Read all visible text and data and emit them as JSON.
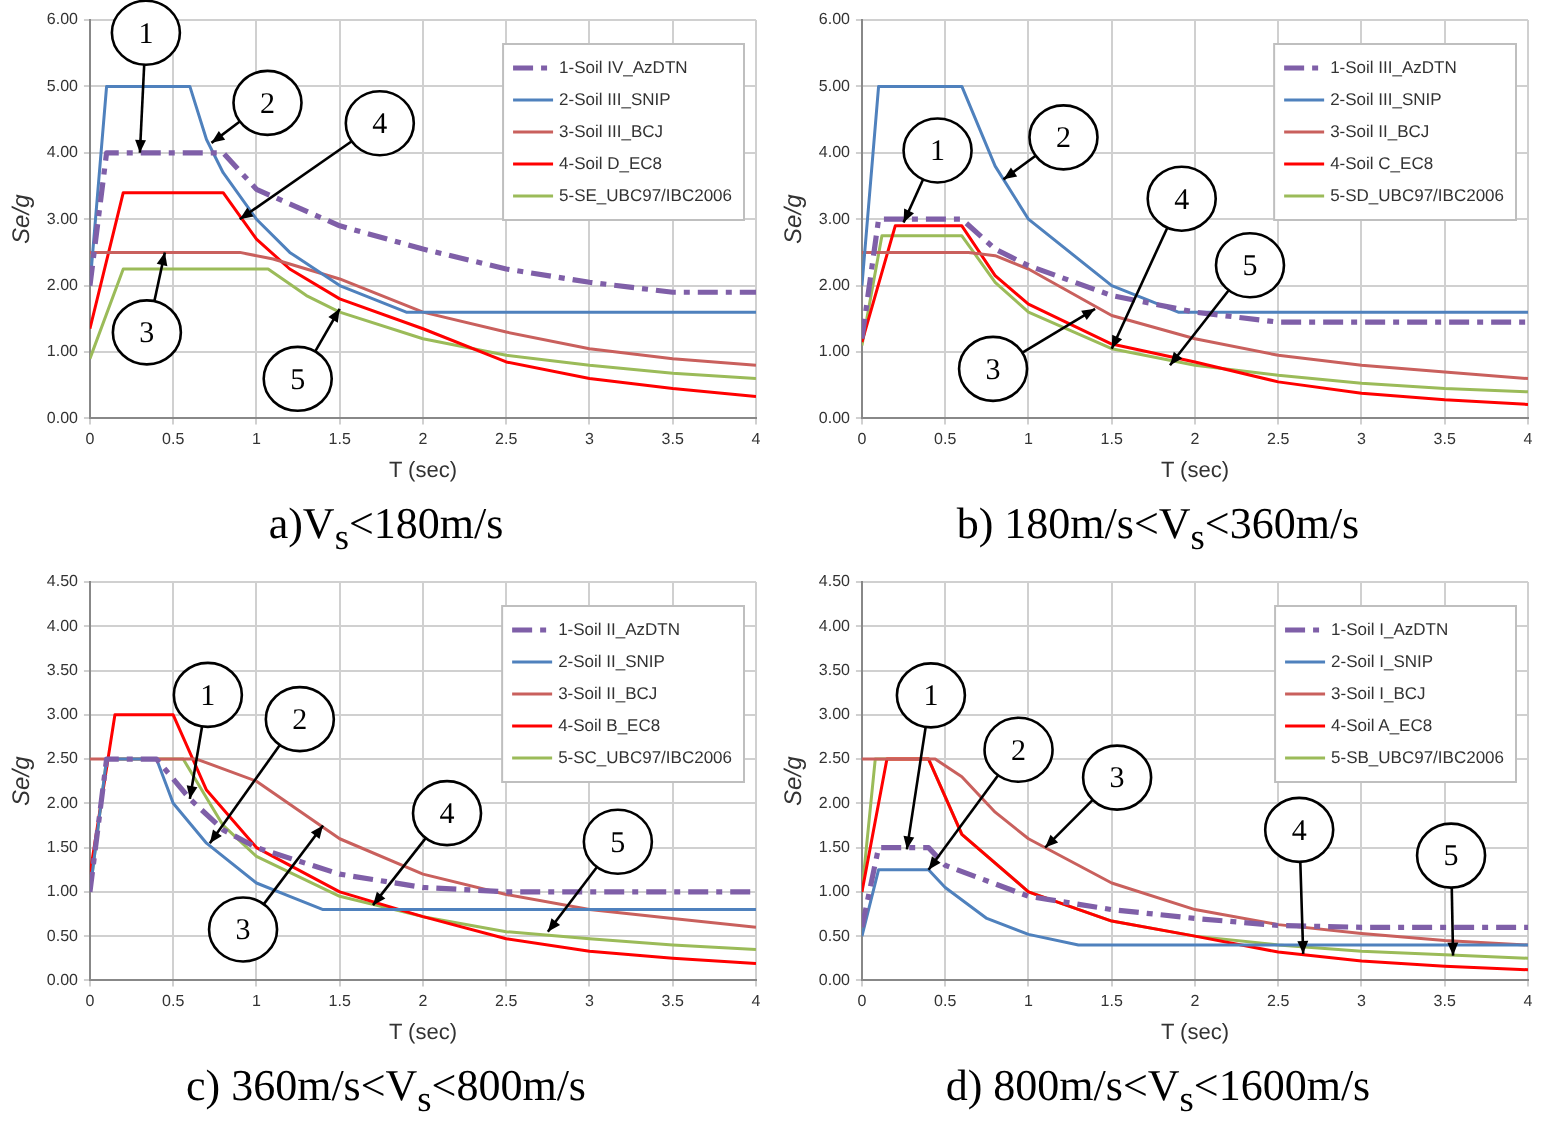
{
  "chart_data": [
    {
      "type": "line",
      "title": "a)V$_{s}$<180m/s",
      "xlabel": "T (sec)",
      "ylabel": "Se/g",
      "xlim": [
        0,
        4
      ],
      "ylim": [
        0,
        6
      ],
      "xticks": [
        0,
        0.5,
        1,
        1.5,
        2,
        2.5,
        3,
        3.5,
        4
      ],
      "yticks": [
        {
          "value": 0,
          "label": "0.00"
        },
        {
          "value": 1,
          "label": "1.00"
        },
        {
          "value": 2,
          "label": "2.00"
        },
        {
          "value": 3,
          "label": "3.00"
        },
        {
          "value": 4,
          "label": "4.00"
        },
        {
          "value": 5,
          "label": "5.00"
        },
        {
          "value": 6,
          "label": "6.00"
        }
      ],
      "grid": true,
      "legend": "top right",
      "marker": "none",
      "series": [
        {
          "name": "1-Soil IV_AzDTN",
          "color": "#7f5fa8",
          "line_style": "dashed",
          "x": [
            0,
            0.1,
            0.8,
            1,
            1.5,
            2,
            2.5,
            3,
            3.5,
            4
          ],
          "values": [
            2.0,
            4.0,
            4.0,
            3.45,
            2.9,
            2.55,
            2.25,
            2.05,
            1.9,
            1.9
          ]
        },
        {
          "name": "2-Soil III_SNIP",
          "color": "#4f81bd",
          "x": [
            0,
            0.1,
            0.6,
            0.7,
            0.8,
            1,
            1.2,
            1.5,
            1.9,
            4
          ],
          "values": [
            2.0,
            5.0,
            5.0,
            4.2,
            3.7,
            3.0,
            2.5,
            2.0,
            1.6,
            1.6
          ]
        },
        {
          "name": "3-Soil III_BCJ",
          "color": "#c9605d",
          "x": [
            0,
            0.9,
            1.1,
            1.5,
            2,
            2.5,
            3,
            3.5,
            4
          ],
          "values": [
            2.5,
            2.5,
            2.4,
            2.1,
            1.6,
            1.3,
            1.05,
            0.9,
            0.8
          ]
        },
        {
          "name": "4-Soil D_EC8",
          "color": "#ff0000",
          "x": [
            0,
            0.2,
            0.8,
            1,
            1.2,
            1.5,
            2,
            2.5,
            3,
            3.5,
            4
          ],
          "values": [
            1.35,
            3.4,
            3.4,
            2.7,
            2.25,
            1.8,
            1.35,
            0.85,
            0.6,
            0.45,
            0.33
          ]
        },
        {
          "name": "5-SE_UBC97/IBC2006",
          "color": "#9bbb59",
          "x": [
            0,
            0.2,
            1.07,
            1.3,
            1.5,
            2,
            2.5,
            3,
            3.5,
            4
          ],
          "values": [
            0.9,
            2.25,
            2.25,
            1.85,
            1.6,
            1.2,
            0.95,
            0.8,
            0.68,
            0.6
          ]
        }
      ],
      "annotations": [
        {
          "text": "1",
          "x": 0.3,
          "y": 4.0
        },
        {
          "text": "2",
          "x": 0.73,
          "y": 4.15
        },
        {
          "text": "3",
          "x": 0.45,
          "y": 2.5
        },
        {
          "text": "4",
          "x": 0.9,
          "y": 3.0
        },
        {
          "text": "5",
          "x": 1.5,
          "y": 1.65
        }
      ]
    },
    {
      "type": "line",
      "title": "b) 180m/s<V$_{s}$<360m/s",
      "xlabel": "T (sec)",
      "ylabel": "Se/g",
      "xlim": [
        0,
        4
      ],
      "ylim": [
        0,
        6
      ],
      "xticks": [
        0,
        0.5,
        1,
        1.5,
        2,
        2.5,
        3,
        3.5,
        4
      ],
      "yticks": [
        {
          "value": 0,
          "label": "0.00"
        },
        {
          "value": 1,
          "label": "1.00"
        },
        {
          "value": 2,
          "label": "2.00"
        },
        {
          "value": 3,
          "label": "3.00"
        },
        {
          "value": 4,
          "label": "4.00"
        },
        {
          "value": 5,
          "label": "5.00"
        },
        {
          "value": 6,
          "label": "6.00"
        }
      ],
      "grid": true,
      "legend": "top right",
      "marker": "none",
      "series": [
        {
          "name": "1-Soil III_AzDTN",
          "color": "#7f5fa8",
          "line_style": "dashed",
          "x": [
            0,
            0.1,
            0.6,
            0.8,
            1,
            1.5,
            2,
            2.5,
            3,
            4
          ],
          "values": [
            1.2,
            3.0,
            3.0,
            2.55,
            2.3,
            1.85,
            1.6,
            1.45,
            1.45,
            1.45
          ]
        },
        {
          "name": "2-Soil III_SNIP",
          "color": "#4f81bd",
          "x": [
            0,
            0.1,
            0.6,
            0.8,
            1,
            1.5,
            1.9,
            4
          ],
          "values": [
            2.0,
            5.0,
            5.0,
            3.8,
            3.0,
            2.0,
            1.6,
            1.6
          ]
        },
        {
          "name": "3-Soil II_BCJ",
          "color": "#c9605d",
          "x": [
            0,
            0.64,
            0.8,
            1,
            1.5,
            2,
            2.5,
            3,
            3.5,
            4
          ],
          "values": [
            2.5,
            2.5,
            2.45,
            2.25,
            1.55,
            1.2,
            0.95,
            0.8,
            0.7,
            0.6
          ]
        },
        {
          "name": "4-Soil C_EC8",
          "color": "#ff0000",
          "x": [
            0,
            0.2,
            0.6,
            0.8,
            1,
            1.5,
            2,
            2.5,
            3,
            3.5,
            4
          ],
          "values": [
            1.15,
            2.9,
            2.9,
            2.15,
            1.72,
            1.12,
            0.85,
            0.55,
            0.38,
            0.28,
            0.21
          ]
        },
        {
          "name": "5-SD_UBC97/IBC2006",
          "color": "#9bbb59",
          "x": [
            0,
            0.12,
            0.6,
            0.8,
            1,
            1.5,
            2,
            2.5,
            3,
            3.5,
            4
          ],
          "values": [
            1.1,
            2.75,
            2.75,
            2.05,
            1.6,
            1.05,
            0.8,
            0.65,
            0.53,
            0.45,
            0.4
          ]
        }
      ],
      "annotations": [
        {
          "text": "1",
          "x": 0.25,
          "y": 2.95
        },
        {
          "text": "2",
          "x": 0.85,
          "y": 3.6
        },
        {
          "text": "3",
          "x": 1.4,
          "y": 1.65
        },
        {
          "text": "4",
          "x": 1.5,
          "y": 1.05
        },
        {
          "text": "5",
          "x": 1.85,
          "y": 0.8
        }
      ]
    },
    {
      "type": "line",
      "title": "c) 360m/s<V$_{s}$<800m/s",
      "xlabel": "T (sec)",
      "ylabel": "Se/g",
      "xlim": [
        0,
        4
      ],
      "ylim": [
        0,
        4.5
      ],
      "xticks": [
        0,
        0.5,
        1,
        1.5,
        2,
        2.5,
        3,
        3.5,
        4
      ],
      "yticks": [
        {
          "value": 0,
          "label": "0.00"
        },
        {
          "value": 0.5,
          "label": "0.50"
        },
        {
          "value": 1,
          "label": "1.00"
        },
        {
          "value": 1.5,
          "label": "1.50"
        },
        {
          "value": 2,
          "label": "2.00"
        },
        {
          "value": 2.5,
          "label": "2.50"
        },
        {
          "value": 3,
          "label": "3.00"
        },
        {
          "value": 3.5,
          "label": "3.50"
        },
        {
          "value": 4,
          "label": "4.00"
        },
        {
          "value": 4.5,
          "label": "4.50"
        }
      ],
      "grid": true,
      "legend": "top right",
      "marker": "none",
      "series": [
        {
          "name": "1-Soil II_AzDTN",
          "color": "#7f5fa8",
          "line_style": "dashed",
          "x": [
            0,
            0.1,
            0.4,
            0.6,
            0.8,
            1,
            1.5,
            2,
            2.5,
            4
          ],
          "values": [
            1.0,
            2.5,
            2.5,
            2.05,
            1.7,
            1.5,
            1.2,
            1.05,
            1.0,
            1.0
          ]
        },
        {
          "name": "2-Soil II_SNIP",
          "color": "#4f81bd",
          "x": [
            0,
            0.1,
            0.4,
            0.5,
            0.7,
            1,
            1.2,
            1.4,
            4
          ],
          "values": [
            1.0,
            2.5,
            2.5,
            2.0,
            1.55,
            1.1,
            0.95,
            0.8,
            0.8
          ]
        },
        {
          "name": "3-Soil II_BCJ",
          "color": "#c9605d",
          "x": [
            0,
            0.64,
            1,
            1.5,
            2,
            2.5,
            3,
            3.5,
            4
          ],
          "values": [
            2.5,
            2.5,
            2.25,
            1.6,
            1.2,
            0.97,
            0.8,
            0.7,
            0.6
          ]
        },
        {
          "name": "4-Soil B_EC8",
          "color": "#ff0000",
          "x": [
            0,
            0.15,
            0.5,
            0.7,
            1,
            1.5,
            2,
            2.5,
            3,
            3.5,
            4
          ],
          "values": [
            1.2,
            3.0,
            3.0,
            2.15,
            1.5,
            1.0,
            0.72,
            0.47,
            0.33,
            0.25,
            0.19
          ]
        },
        {
          "name": "5-SC_UBC97/IBC2006",
          "color": "#9bbb59",
          "x": [
            0,
            0.1,
            0.56,
            0.8,
            1,
            1.5,
            2,
            2.5,
            3,
            3.5,
            4
          ],
          "values": [
            1.0,
            2.5,
            2.5,
            1.75,
            1.4,
            0.95,
            0.72,
            0.55,
            0.47,
            0.4,
            0.35
          ]
        }
      ],
      "annotations": [
        {
          "text": "1",
          "x": 0.6,
          "y": 2.05
        },
        {
          "text": "2",
          "x": 0.72,
          "y": 1.55
        },
        {
          "text": "3",
          "x": 1.4,
          "y": 1.75
        },
        {
          "text": "4",
          "x": 1.7,
          "y": 0.85
        },
        {
          "text": "5",
          "x": 2.75,
          "y": 0.55
        }
      ]
    },
    {
      "type": "line",
      "title": "d) 800m/s<V$_{s}$<1600m/s",
      "xlabel": "T (sec)",
      "ylabel": "Se/g",
      "xlim": [
        0,
        4
      ],
      "ylim": [
        0,
        4.5
      ],
      "xticks": [
        0,
        0.5,
        1,
        1.5,
        2,
        2.5,
        3,
        3.5,
        4
      ],
      "yticks": [
        {
          "value": 0,
          "label": "0.00"
        },
        {
          "value": 0.5,
          "label": "0.50"
        },
        {
          "value": 1,
          "label": "1.00"
        },
        {
          "value": 1.5,
          "label": "1.50"
        },
        {
          "value": 2,
          "label": "2.00"
        },
        {
          "value": 2.5,
          "label": "2.50"
        },
        {
          "value": 3,
          "label": "3.00"
        },
        {
          "value": 3.5,
          "label": "3.50"
        },
        {
          "value": 4,
          "label": "4.00"
        },
        {
          "value": 4.5,
          "label": "4.50"
        }
      ],
      "grid": true,
      "legend": "top right",
      "marker": "none",
      "series": [
        {
          "name": "1-Soil I_AzDTN",
          "color": "#7f5fa8",
          "line_style": "dashed",
          "x": [
            0,
            0.1,
            0.4,
            0.5,
            1,
            1.5,
            2,
            2.5,
            3,
            4
          ],
          "values": [
            0.6,
            1.5,
            1.5,
            1.3,
            0.95,
            0.8,
            0.7,
            0.62,
            0.6,
            0.6
          ]
        },
        {
          "name": "2-Soil I_SNIP",
          "color": "#4f81bd",
          "x": [
            0,
            0.1,
            0.4,
            0.5,
            0.75,
            1,
            1.3,
            4
          ],
          "values": [
            0.5,
            1.25,
            1.25,
            1.05,
            0.7,
            0.52,
            0.4,
            0.4
          ]
        },
        {
          "name": "3-Soil I_BCJ",
          "color": "#c9605d",
          "x": [
            0,
            0.44,
            0.6,
            0.8,
            1,
            1.5,
            2,
            2.5,
            3,
            3.5,
            4
          ],
          "values": [
            2.5,
            2.5,
            2.3,
            1.9,
            1.6,
            1.1,
            0.8,
            0.63,
            0.53,
            0.45,
            0.4
          ]
        },
        {
          "name": "4-Soil A_EC8",
          "color": "#ff0000",
          "x": [
            0,
            0.15,
            0.4,
            0.6,
            1,
            1.5,
            2,
            2.5,
            3,
            3.5,
            4
          ],
          "values": [
            1.0,
            2.5,
            2.5,
            1.65,
            1.0,
            0.67,
            0.5,
            0.32,
            0.22,
            0.16,
            0.12
          ]
        },
        {
          "name": "5-SB_UBC97/IBC2006",
          "color": "#9bbb59",
          "x": [
            0,
            0.08,
            0.4,
            0.6,
            1,
            1.5,
            2,
            2.5,
            3,
            3.5,
            4
          ],
          "values": [
            1.0,
            2.5,
            2.5,
            1.65,
            1.0,
            0.67,
            0.5,
            0.4,
            0.33,
            0.29,
            0.25
          ]
        }
      ],
      "annotations": [
        {
          "text": "1",
          "x": 0.27,
          "y": 1.48
        },
        {
          "text": "2",
          "x": 0.4,
          "y": 1.25
        },
        {
          "text": "3",
          "x": 1.1,
          "y": 1.5
        },
        {
          "text": "4",
          "x": 2.65,
          "y": 0.3
        },
        {
          "text": "5",
          "x": 3.55,
          "y": 0.28
        }
      ]
    }
  ]
}
